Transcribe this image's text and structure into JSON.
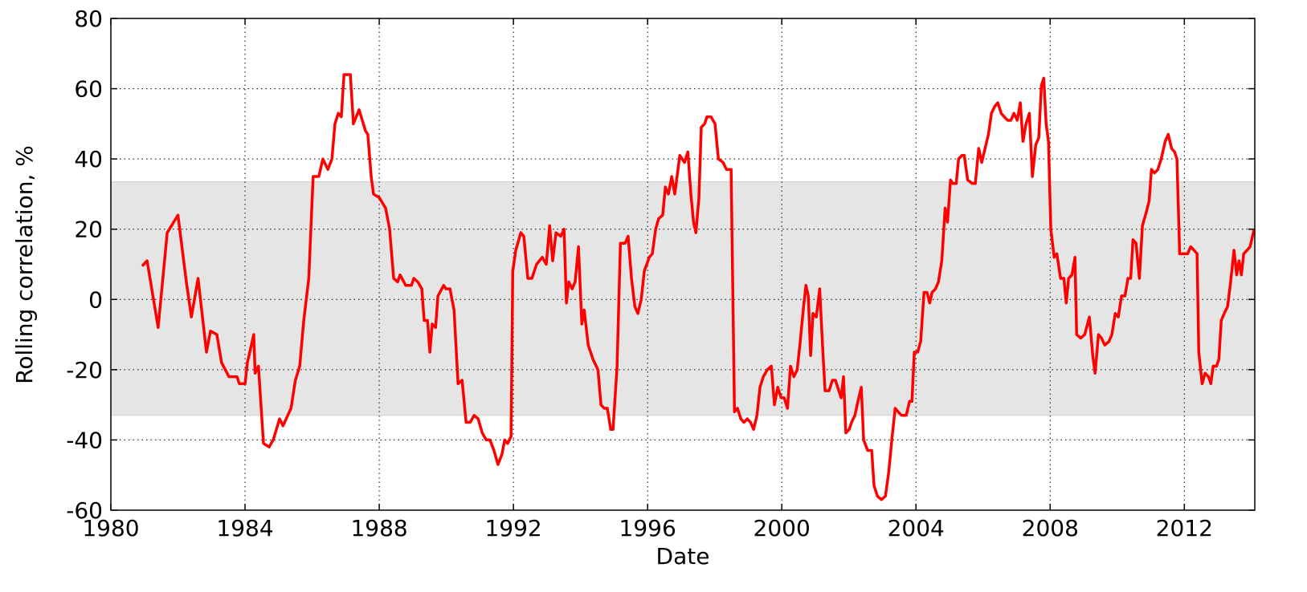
{
  "chart_data": {
    "type": "line",
    "xlabel": "Date",
    "ylabel": "Rolling correlation, %",
    "color": "#ff0000",
    "band_color": "#e5e5e5",
    "band_ylim": [
      -33,
      33.5
    ],
    "grid": true,
    "xlim": [
      1980,
      2014.1
    ],
    "xticks": [
      1980,
      1984,
      1988,
      1992,
      1996,
      2000,
      2004,
      2008,
      2012
    ],
    "ylim": [
      -60,
      80
    ],
    "yticks": [
      -60,
      -40,
      -20,
      0,
      20,
      40,
      60,
      80
    ],
    "x": [
      1980.93,
      1981.08,
      1981.41,
      1981.68,
      1982.0,
      1982.25,
      1982.4,
      1982.6,
      1982.85,
      1982.97,
      1983.16,
      1983.3,
      1983.52,
      1983.76,
      1983.83,
      1984.0,
      1984.07,
      1984.26,
      1984.3,
      1984.4,
      1984.55,
      1984.72,
      1984.84,
      1985.03,
      1985.13,
      1985.37,
      1985.5,
      1985.63,
      1985.75,
      1985.9,
      1986.03,
      1986.2,
      1986.32,
      1986.47,
      1986.59,
      1986.68,
      1986.78,
      1986.87,
      1986.95,
      1987.14,
      1987.23,
      1987.4,
      1987.59,
      1987.66,
      1987.76,
      1987.83,
      1988.0,
      1988.19,
      1988.31,
      1988.43,
      1988.55,
      1988.62,
      1988.79,
      1988.96,
      1989.03,
      1989.15,
      1989.27,
      1989.34,
      1989.44,
      1989.51,
      1989.58,
      1989.68,
      1989.75,
      1989.92,
      1989.99,
      1990.11,
      1990.23,
      1990.35,
      1990.47,
      1990.59,
      1990.71,
      1990.83,
      1990.95,
      1991.07,
      1991.19,
      1991.3,
      1991.42,
      1991.54,
      1991.66,
      1991.74,
      1991.83,
      1991.93,
      1991.98,
      1992.07,
      1992.22,
      1992.31,
      1992.43,
      1992.55,
      1992.69,
      1992.86,
      1992.98,
      1993.08,
      1993.17,
      1993.27,
      1993.41,
      1993.51,
      1993.58,
      1993.65,
      1993.75,
      1993.84,
      1993.94,
      1994.04,
      1994.11,
      1994.23,
      1994.37,
      1994.52,
      1994.61,
      1994.71,
      1994.8,
      1994.9,
      1994.97,
      1995.09,
      1995.19,
      1995.33,
      1995.42,
      1995.52,
      1995.62,
      1995.71,
      1995.81,
      1995.9,
      1996.05,
      1996.14,
      1996.24,
      1996.33,
      1996.45,
      1996.53,
      1996.62,
      1996.72,
      1996.81,
      1996.96,
      1997.1,
      1997.2,
      1997.29,
      1997.37,
      1997.44,
      1997.53,
      1997.6,
      1997.7,
      1997.77,
      1997.89,
      1998.01,
      1998.11,
      1998.25,
      1998.35,
      1998.49,
      1998.59,
      1998.68,
      1998.78,
      1998.87,
      1998.97,
      1999.07,
      1999.16,
      1999.26,
      1999.35,
      1999.45,
      1999.57,
      1999.69,
      1999.78,
      1999.88,
      1999.98,
      2000.07,
      2000.17,
      2000.26,
      2000.36,
      2000.46,
      2000.55,
      2000.65,
      2000.72,
      2000.79,
      2000.86,
      2000.93,
      2001.03,
      2001.13,
      2001.22,
      2001.29,
      2001.41,
      2001.51,
      2001.6,
      2001.7,
      2001.77,
      2001.84,
      2001.91,
      2002.01,
      2002.08,
      2002.18,
      2002.27,
      2002.37,
      2002.44,
      2002.56,
      2002.68,
      2002.75,
      2002.85,
      2002.97,
      2003.09,
      2003.19,
      2003.28,
      2003.38,
      2003.47,
      2003.57,
      2003.71,
      2003.81,
      2003.88,
      2003.95,
      2004.05,
      2004.14,
      2004.24,
      2004.33,
      2004.41,
      2004.48,
      2004.58,
      2004.67,
      2004.77,
      2004.87,
      2004.94,
      2005.03,
      2005.1,
      2005.2,
      2005.27,
      2005.37,
      2005.44,
      2005.54,
      2005.68,
      2005.77,
      2005.87,
      2005.96,
      2006.06,
      2006.16,
      2006.25,
      2006.35,
      2006.44,
      2006.54,
      2006.63,
      2006.73,
      2006.83,
      2006.92,
      2007.02,
      2007.11,
      2007.19,
      2007.28,
      2007.38,
      2007.47,
      2007.57,
      2007.66,
      2007.74,
      2007.81,
      2007.88,
      2007.95,
      2008.02,
      2008.12,
      2008.2,
      2008.31,
      2008.41,
      2008.48,
      2008.55,
      2008.65,
      2008.74,
      2008.79,
      2008.91,
      2009.03,
      2009.17,
      2009.27,
      2009.34,
      2009.44,
      2009.53,
      2009.63,
      2009.75,
      2009.84,
      2009.94,
      2010.03,
      2010.13,
      2010.23,
      2010.32,
      2010.4,
      2010.47,
      2010.56,
      2010.66,
      2010.75,
      2010.87,
      2010.95,
      2011.02,
      2011.11,
      2011.21,
      2011.31,
      2011.43,
      2011.52,
      2011.62,
      2011.71,
      2011.78,
      2011.86,
      2011.95,
      2012.1,
      2012.19,
      2012.29,
      2012.38,
      2012.43,
      2012.53,
      2012.62,
      2012.72,
      2012.79,
      2012.86,
      2012.96,
      2013.03,
      2013.1,
      2013.19,
      2013.29,
      2013.38,
      2013.48,
      2013.56,
      2013.63,
      2013.7,
      2013.77,
      2013.87,
      2013.96,
      2014.08
    ],
    "values": [
      9.5,
      11,
      -8,
      19,
      24,
      5,
      -5,
      6,
      -15,
      -9,
      -10,
      -18,
      -22,
      -22,
      -24,
      -24,
      -18,
      -10,
      -21,
      -19,
      -41,
      -42,
      -40,
      -34,
      -36,
      -31,
      -23,
      -19,
      -6,
      6,
      35,
      35,
      40,
      37,
      40,
      50,
      53,
      52,
      64,
      64,
      50,
      54,
      48,
      47,
      35,
      30,
      29,
      26,
      20,
      6,
      5,
      7,
      4,
      4,
      6,
      5,
      3,
      -6,
      -6,
      -15,
      -7,
      -8,
      1,
      4,
      3,
      3,
      -3,
      -24,
      -23,
      -35,
      -35,
      -33,
      -34,
      -38,
      -40,
      -40,
      -43,
      -47,
      -44,
      -40,
      -41,
      -39,
      8,
      14,
      19,
      18,
      6,
      6,
      10,
      12,
      10,
      21,
      11,
      19,
      18,
      20,
      -1,
      5,
      3,
      5,
      15,
      -7,
      -3,
      -13,
      -17,
      -20,
      -30,
      -31,
      -31,
      -37,
      -37,
      -19,
      16,
      16,
      18,
      6,
      -2,
      -4,
      0,
      8,
      12,
      13,
      20,
      23,
      24,
      32,
      30,
      35,
      30,
      41,
      39,
      42,
      30,
      22,
      19,
      29,
      49,
      50,
      52,
      52,
      50,
      40,
      39,
      37,
      37,
      -32,
      -31,
      -34,
      -35,
      -34,
      -35,
      -37,
      -33,
      -25,
      -22,
      -20,
      -19,
      -30,
      -25,
      -28,
      -28,
      -31,
      -19,
      -22,
      -20,
      -12,
      -2,
      4,
      1,
      -16,
      -4,
      -5,
      3,
      -14,
      -26,
      -26,
      -23,
      -23,
      -26,
      -28,
      -22,
      -38,
      -37,
      -35,
      -33,
      -29,
      -25,
      -40,
      -43,
      -43,
      -53,
      -56,
      -57,
      -56,
      -49,
      -40,
      -31,
      -32,
      -33,
      -33,
      -29,
      -29,
      -15,
      -15,
      -12,
      2,
      2,
      -1,
      2,
      3,
      5,
      11,
      26,
      22,
      34,
      33,
      33,
      40,
      41,
      41,
      34,
      33,
      33,
      43,
      39,
      43,
      47,
      53,
      55,
      56,
      53,
      52,
      51,
      51,
      53,
      51,
      56,
      45,
      50,
      53,
      35,
      44,
      46,
      61,
      63,
      50,
      45,
      20,
      12,
      13,
      6,
      6,
      -1,
      6,
      7,
      12,
      -10,
      -11,
      -10,
      -5,
      -16,
      -21,
      -10,
      -11,
      -13,
      -12,
      -10,
      -4,
      -5,
      1,
      1,
      6,
      6,
      17,
      16,
      6,
      21,
      25,
      28,
      37,
      36,
      37,
      40,
      45,
      47,
      43,
      42,
      40,
      13,
      13,
      13,
      15,
      14,
      13,
      -15,
      -24,
      -21,
      -22,
      -24,
      -19,
      -19,
      -17,
      -6,
      -4,
      -2,
      5,
      14,
      7,
      11,
      7,
      13,
      14,
      15,
      20
    ]
  }
}
